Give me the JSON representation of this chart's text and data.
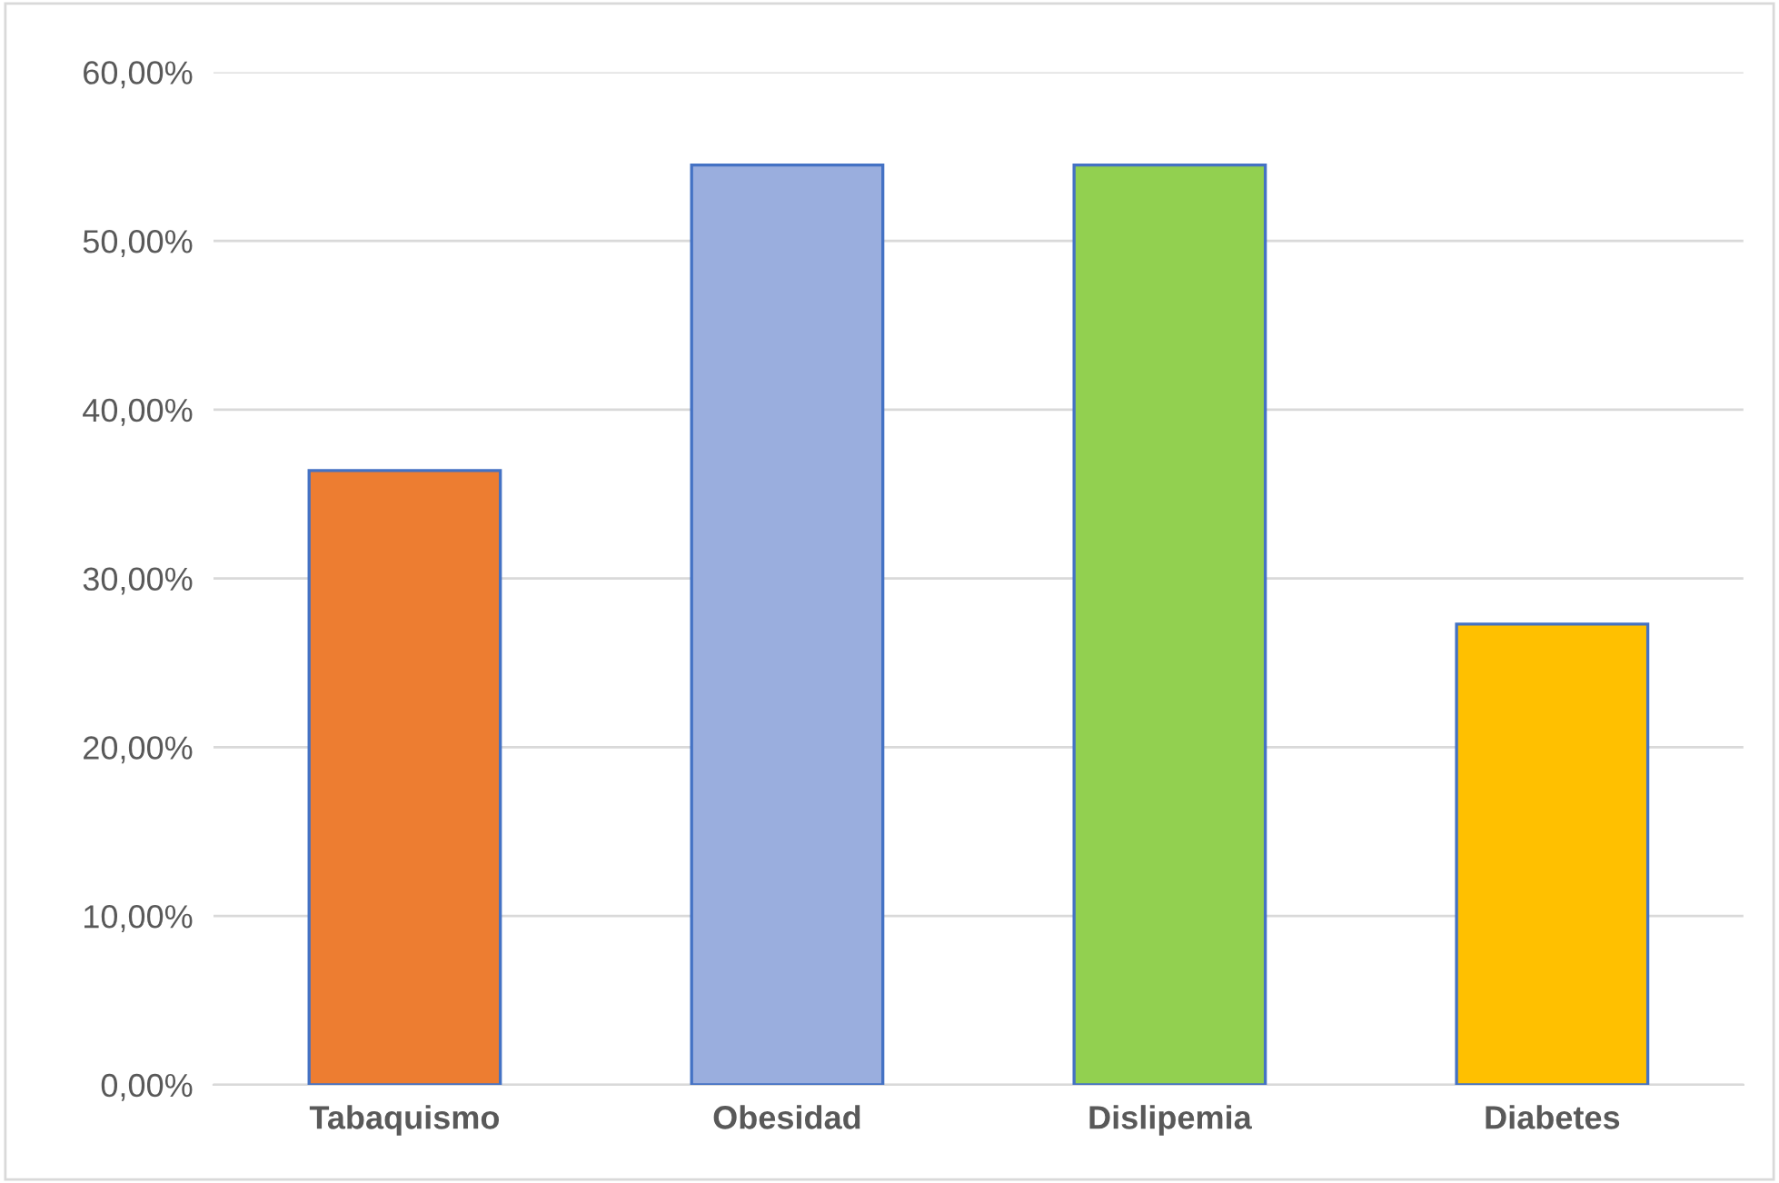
{
  "chart_data": {
    "type": "bar",
    "categories": [
      "Tabaquismo",
      "Obesidad",
      "Dislipemia",
      "Diabetes"
    ],
    "values": [
      36.4,
      54.5,
      54.5,
      27.3
    ],
    "colors": [
      "#ed7d31",
      "#9aaede",
      "#92d050",
      "#ffc000"
    ],
    "ylim": [
      0,
      60
    ],
    "yticks": [
      {
        "value": 0,
        "label": "0,00%"
      },
      {
        "value": 10,
        "label": "10,00%"
      },
      {
        "value": 20,
        "label": "20,00%"
      },
      {
        "value": 30,
        "label": "30,00%"
      },
      {
        "value": 40,
        "label": "40,00%"
      },
      {
        "value": 50,
        "label": "50,00%"
      },
      {
        "value": 60,
        "label": "60,00%"
      }
    ],
    "grid": "y"
  }
}
